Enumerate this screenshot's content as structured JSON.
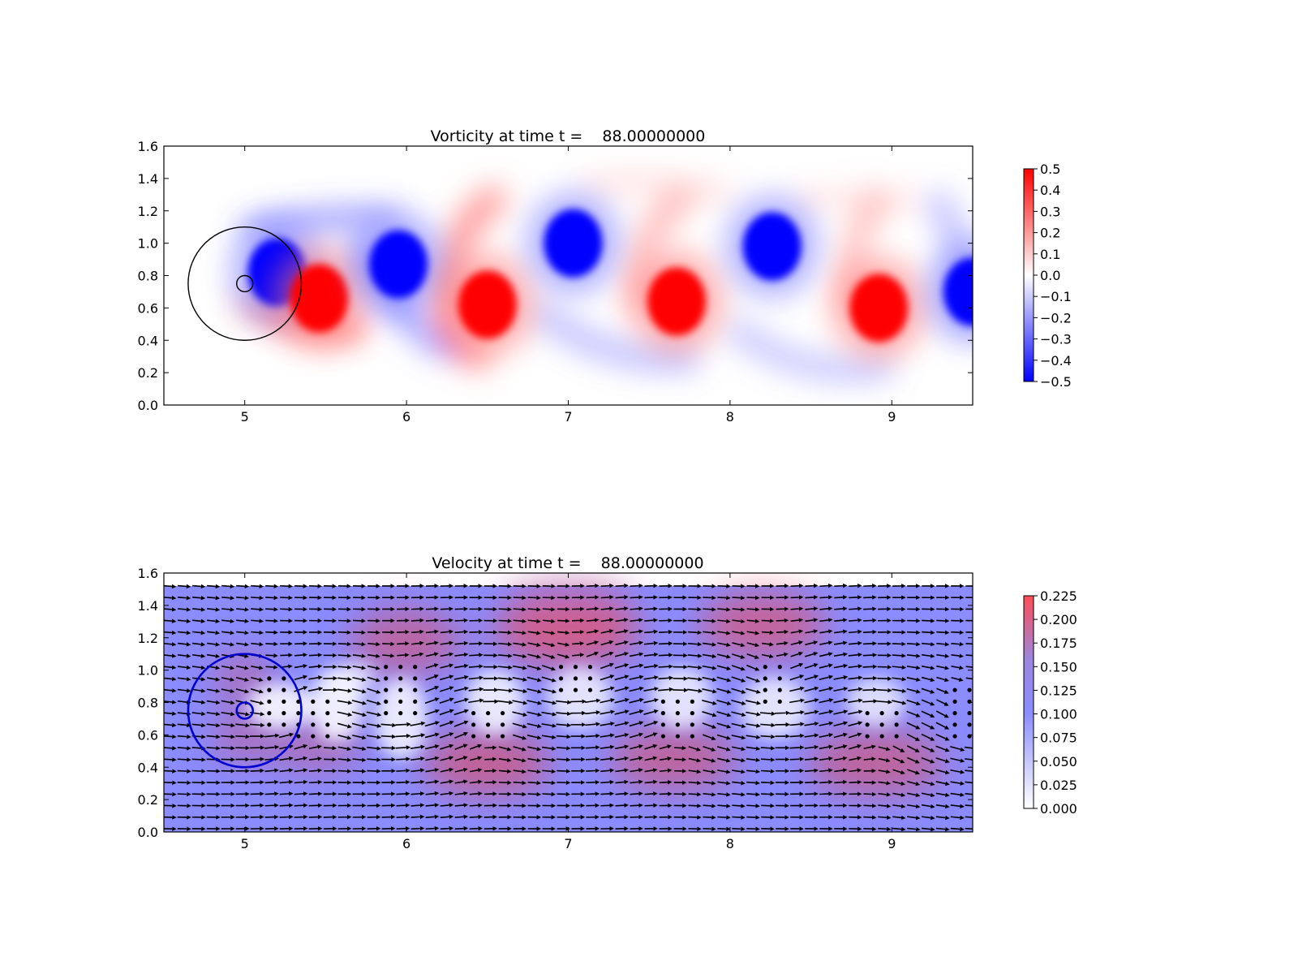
{
  "chart_data": [
    {
      "type": "heatmap",
      "title": "Vorticity at time t =    88.00000000",
      "xlim": [
        4.5,
        9.5
      ],
      "ylim": [
        0.0,
        1.6
      ],
      "xticks": [
        "5",
        "6",
        "7",
        "8",
        "9"
      ],
      "yticks": [
        "0.0",
        "0.2",
        "0.4",
        "0.6",
        "0.8",
        "1.0",
        "1.2",
        "1.4",
        "1.6"
      ],
      "colorbar": {
        "range": [
          -0.5,
          0.5
        ],
        "ticks": [
          "−0.5",
          "−0.4",
          "−0.3",
          "−0.2",
          "−0.1",
          "0.0",
          "0.1",
          "0.2",
          "0.3",
          "0.4",
          "0.5"
        ],
        "colormap": [
          "#0000ff",
          "#ffffff",
          "#ff0000"
        ]
      },
      "cylinder": {
        "center": [
          5.0,
          0.75
        ],
        "radius": 0.05
      },
      "fine_grid_circle": {
        "center": [
          5.0,
          0.75
        ],
        "radius": 0.35
      },
      "vortices": [
        {
          "x": 5.2,
          "y": 0.82,
          "sign": -1
        },
        {
          "x": 5.46,
          "y": 0.66,
          "sign": 1
        },
        {
          "x": 5.95,
          "y": 0.87,
          "sign": -1
        },
        {
          "x": 6.5,
          "y": 0.62,
          "sign": 1
        },
        {
          "x": 7.03,
          "y": 1.0,
          "sign": -1
        },
        {
          "x": 7.67,
          "y": 0.64,
          "sign": 1
        },
        {
          "x": 8.26,
          "y": 0.98,
          "sign": -1
        },
        {
          "x": 8.92,
          "y": 0.6,
          "sign": 1
        },
        {
          "x": 9.5,
          "y": 0.7,
          "sign": -1
        }
      ]
    },
    {
      "type": "heatmap",
      "title": "Velocity at time t =    88.00000000",
      "xlim": [
        4.5,
        9.5
      ],
      "ylim": [
        0.0,
        1.6
      ],
      "xticks": [
        "5",
        "6",
        "7",
        "8",
        "9"
      ],
      "yticks": [
        "0.0",
        "0.2",
        "0.4",
        "0.6",
        "0.8",
        "1.0",
        "1.2",
        "1.4",
        "1.6"
      ],
      "colorbar": {
        "range": [
          0.0,
          0.225
        ],
        "ticks": [
          "0.000",
          "0.025",
          "0.050",
          "0.075",
          "0.100",
          "0.125",
          "0.150",
          "0.175",
          "0.200",
          "0.225"
        ],
        "colormap": [
          "#ffffff",
          "#8a8cff",
          "#ff4c56"
        ]
      },
      "field_top": 1.52,
      "quiver": true,
      "cylinder": {
        "center": [
          5.0,
          0.75
        ],
        "radius": 0.05
      },
      "fine_grid_circle": {
        "center": [
          5.0,
          0.75
        ],
        "radius": 0.35
      }
    }
  ]
}
